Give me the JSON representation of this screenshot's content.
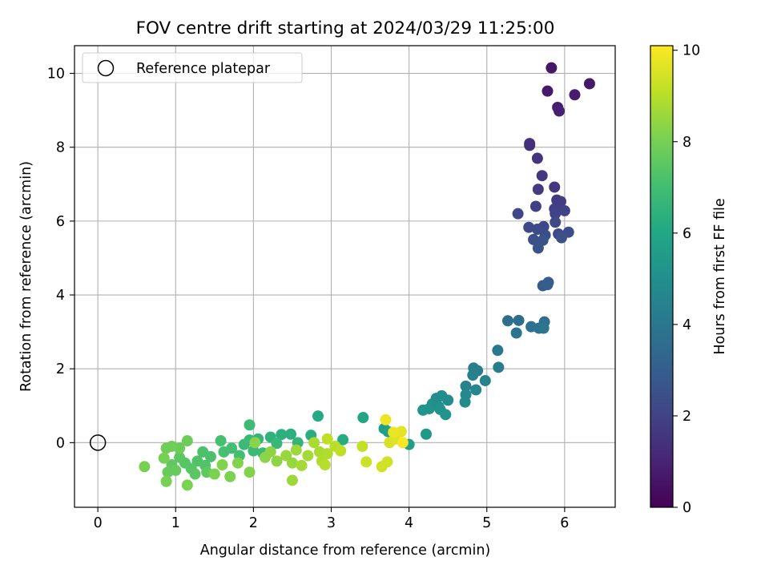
{
  "chart_data": {
    "type": "scatter",
    "title": "FOV centre drift starting at 2024/03/29 11:25:00",
    "xlabel": "Angular distance from reference (arcmin)",
    "ylabel": "Rotation from reference (arcmin)",
    "xlim": [
      -0.3,
      6.65
    ],
    "ylim": [
      -1.75,
      10.75
    ],
    "xticks": [
      0,
      1,
      2,
      3,
      4,
      5,
      6
    ],
    "yticks": [
      0,
      2,
      4,
      6,
      8,
      10
    ],
    "grid": true,
    "legend": {
      "placement": "top-left",
      "entries": [
        "Reference platepar"
      ]
    },
    "reference_point": {
      "x": 0,
      "y": 0
    },
    "colorbar": {
      "label": "Hours from first FF file",
      "min": 0,
      "max": 10.1,
      "ticks": [
        0,
        2,
        4,
        6,
        8,
        10
      ],
      "colormap": "viridis"
    },
    "points": [
      {
        "x": 5.83,
        "y": 10.15,
        "h": 0.6
      },
      {
        "x": 6.32,
        "y": 9.72,
        "h": 0.7
      },
      {
        "x": 5.78,
        "y": 9.52,
        "h": 0.7
      },
      {
        "x": 6.13,
        "y": 9.42,
        "h": 0.8
      },
      {
        "x": 5.91,
        "y": 9.08,
        "h": 0.8
      },
      {
        "x": 5.93,
        "y": 8.98,
        "h": 0.9
      },
      {
        "x": 5.55,
        "y": 8.1,
        "h": 1.4
      },
      {
        "x": 5.55,
        "y": 8.05,
        "h": 1.4
      },
      {
        "x": 5.65,
        "y": 7.7,
        "h": 1.5
      },
      {
        "x": 5.71,
        "y": 7.23,
        "h": 1.6
      },
      {
        "x": 5.87,
        "y": 6.92,
        "h": 1.6
      },
      {
        "x": 5.66,
        "y": 6.86,
        "h": 1.7
      },
      {
        "x": 5.9,
        "y": 6.57,
        "h": 1.7
      },
      {
        "x": 5.92,
        "y": 6.5,
        "h": 1.8
      },
      {
        "x": 5.95,
        "y": 6.53,
        "h": 1.8
      },
      {
        "x": 5.87,
        "y": 6.33,
        "h": 1.9
      },
      {
        "x": 5.63,
        "y": 6.4,
        "h": 1.9
      },
      {
        "x": 5.88,
        "y": 6.2,
        "h": 2.0
      },
      {
        "x": 6.0,
        "y": 6.28,
        "h": 2.0
      },
      {
        "x": 5.4,
        "y": 6.2,
        "h": 2.1
      },
      {
        "x": 5.73,
        "y": 5.85,
        "h": 2.1
      },
      {
        "x": 5.54,
        "y": 5.83,
        "h": 2.2
      },
      {
        "x": 5.88,
        "y": 5.97,
        "h": 2.2
      },
      {
        "x": 5.65,
        "y": 5.78,
        "h": 2.3
      },
      {
        "x": 5.92,
        "y": 5.65,
        "h": 2.3
      },
      {
        "x": 6.05,
        "y": 5.7,
        "h": 2.4
      },
      {
        "x": 5.75,
        "y": 5.62,
        "h": 2.4
      },
      {
        "x": 5.96,
        "y": 5.55,
        "h": 2.5
      },
      {
        "x": 5.6,
        "y": 5.5,
        "h": 2.5
      },
      {
        "x": 5.72,
        "y": 5.48,
        "h": 2.6
      },
      {
        "x": 5.66,
        "y": 5.27,
        "h": 2.6
      },
      {
        "x": 5.79,
        "y": 4.34,
        "h": 2.9
      },
      {
        "x": 5.72,
        "y": 4.25,
        "h": 2.9
      },
      {
        "x": 5.78,
        "y": 4.28,
        "h": 3.0
      },
      {
        "x": 5.27,
        "y": 3.3,
        "h": 3.6
      },
      {
        "x": 5.41,
        "y": 3.31,
        "h": 3.6
      },
      {
        "x": 5.74,
        "y": 3.27,
        "h": 3.7
      },
      {
        "x": 5.57,
        "y": 3.14,
        "h": 3.7
      },
      {
        "x": 5.67,
        "y": 3.1,
        "h": 3.8
      },
      {
        "x": 5.38,
        "y": 2.97,
        "h": 3.8
      },
      {
        "x": 5.73,
        "y": 3.1,
        "h": 3.9
      },
      {
        "x": 5.14,
        "y": 2.5,
        "h": 4.1
      },
      {
        "x": 5.15,
        "y": 2.04,
        "h": 4.2
      },
      {
        "x": 4.83,
        "y": 2.02,
        "h": 4.3
      },
      {
        "x": 4.88,
        "y": 1.95,
        "h": 4.3
      },
      {
        "x": 4.82,
        "y": 1.83,
        "h": 4.4
      },
      {
        "x": 4.98,
        "y": 1.68,
        "h": 4.5
      },
      {
        "x": 4.73,
        "y": 1.53,
        "h": 4.5
      },
      {
        "x": 4.86,
        "y": 1.43,
        "h": 4.6
      },
      {
        "x": 4.73,
        "y": 1.3,
        "h": 4.7
      },
      {
        "x": 4.5,
        "y": 1.15,
        "h": 4.8
      },
      {
        "x": 4.72,
        "y": 1.1,
        "h": 4.8
      },
      {
        "x": 4.35,
        "y": 1.2,
        "h": 4.9
      },
      {
        "x": 4.42,
        "y": 1.27,
        "h": 4.9
      },
      {
        "x": 4.3,
        "y": 1.05,
        "h": 5.0
      },
      {
        "x": 4.38,
        "y": 0.98,
        "h": 5.0
      },
      {
        "x": 4.26,
        "y": 0.92,
        "h": 5.1
      },
      {
        "x": 4.4,
        "y": 0.9,
        "h": 5.1
      },
      {
        "x": 4.18,
        "y": 0.88,
        "h": 5.2
      },
      {
        "x": 4.47,
        "y": 0.76,
        "h": 5.2
      },
      {
        "x": 4.22,
        "y": 0.23,
        "h": 5.4
      },
      {
        "x": 4.0,
        "y": -0.05,
        "h": 5.6
      },
      {
        "x": 3.68,
        "y": 0.38,
        "h": 5.6
      },
      {
        "x": 3.73,
        "y": 0.3,
        "h": 5.7
      },
      {
        "x": 3.41,
        "y": 0.68,
        "h": 5.9
      },
      {
        "x": 2.83,
        "y": 0.72,
        "h": 6.1
      },
      {
        "x": 3.15,
        "y": 0.08,
        "h": 6.2
      },
      {
        "x": 2.74,
        "y": 0.2,
        "h": 6.3
      },
      {
        "x": 2.48,
        "y": 0.23,
        "h": 6.4
      },
      {
        "x": 2.36,
        "y": 0.22,
        "h": 6.4
      },
      {
        "x": 2.22,
        "y": 0.15,
        "h": 6.5
      },
      {
        "x": 2.06,
        "y": 0.1,
        "h": 6.6
      },
      {
        "x": 2.57,
        "y": 0.0,
        "h": 6.6
      },
      {
        "x": 2.3,
        "y": -0.02,
        "h": 6.7
      },
      {
        "x": 1.95,
        "y": 0.07,
        "h": 6.7
      },
      {
        "x": 1.88,
        "y": -0.05,
        "h": 6.8
      },
      {
        "x": 2.0,
        "y": -0.22,
        "h": 6.8
      },
      {
        "x": 2.12,
        "y": -0.28,
        "h": 6.9
      },
      {
        "x": 1.95,
        "y": 0.48,
        "h": 6.9
      },
      {
        "x": 1.72,
        "y": -0.15,
        "h": 7.0
      },
      {
        "x": 1.82,
        "y": -0.35,
        "h": 7.0
      },
      {
        "x": 1.62,
        "y": -0.25,
        "h": 7.1
      },
      {
        "x": 1.58,
        "y": 0.05,
        "h": 7.1
      },
      {
        "x": 1.45,
        "y": -0.38,
        "h": 7.2
      },
      {
        "x": 1.35,
        "y": -0.25,
        "h": 7.2
      },
      {
        "x": 1.28,
        "y": -0.5,
        "h": 7.3
      },
      {
        "x": 1.38,
        "y": -0.62,
        "h": 7.3
      },
      {
        "x": 1.2,
        "y": -0.7,
        "h": 7.4
      },
      {
        "x": 1.12,
        "y": -0.55,
        "h": 7.4
      },
      {
        "x": 1.05,
        "y": -0.4,
        "h": 7.5
      },
      {
        "x": 1.25,
        "y": -0.85,
        "h": 7.5
      },
      {
        "x": 1.4,
        "y": -0.8,
        "h": 7.6
      },
      {
        "x": 0.95,
        "y": -0.6,
        "h": 7.6
      },
      {
        "x": 1.0,
        "y": -0.75,
        "h": 7.7
      },
      {
        "x": 0.9,
        "y": -0.8,
        "h": 7.7
      },
      {
        "x": 1.15,
        "y": 0.05,
        "h": 7.8
      },
      {
        "x": 1.05,
        "y": -0.15,
        "h": 7.8
      },
      {
        "x": 0.88,
        "y": -0.15,
        "h": 7.9
      },
      {
        "x": 0.95,
        "y": -0.1,
        "h": 7.9
      },
      {
        "x": 0.85,
        "y": -0.42,
        "h": 8.0
      },
      {
        "x": 0.6,
        "y": -0.65,
        "h": 8.0
      },
      {
        "x": 0.88,
        "y": -1.05,
        "h": 8.0
      },
      {
        "x": 1.15,
        "y": -1.15,
        "h": 8.1
      },
      {
        "x": 1.5,
        "y": -0.85,
        "h": 8.1
      },
      {
        "x": 1.7,
        "y": -0.92,
        "h": 8.1
      },
      {
        "x": 1.8,
        "y": -0.55,
        "h": 8.2
      },
      {
        "x": 1.6,
        "y": -0.6,
        "h": 8.2
      },
      {
        "x": 1.95,
        "y": -0.8,
        "h": 8.2
      },
      {
        "x": 2.02,
        "y": 0.0,
        "h": 8.3
      },
      {
        "x": 2.15,
        "y": -0.4,
        "h": 8.3
      },
      {
        "x": 2.22,
        "y": -0.25,
        "h": 8.4
      },
      {
        "x": 2.3,
        "y": -0.5,
        "h": 8.4
      },
      {
        "x": 2.42,
        "y": -0.35,
        "h": 8.5
      },
      {
        "x": 2.5,
        "y": -0.55,
        "h": 8.5
      },
      {
        "x": 2.55,
        "y": -0.2,
        "h": 8.6
      },
      {
        "x": 2.5,
        "y": -1.02,
        "h": 8.6
      },
      {
        "x": 2.62,
        "y": -0.62,
        "h": 8.7
      },
      {
        "x": 2.7,
        "y": -0.35,
        "h": 8.7
      },
      {
        "x": 2.78,
        "y": 0.0,
        "h": 8.8
      },
      {
        "x": 2.85,
        "y": -0.25,
        "h": 8.8
      },
      {
        "x": 2.88,
        "y": -0.5,
        "h": 8.9
      },
      {
        "x": 2.95,
        "y": -0.3,
        "h": 8.9
      },
      {
        "x": 2.92,
        "y": -0.6,
        "h": 9.0
      },
      {
        "x": 3.05,
        "y": -0.1,
        "h": 9.0
      },
      {
        "x": 3.12,
        "y": -0.22,
        "h": 9.1
      },
      {
        "x": 2.95,
        "y": 0.1,
        "h": 9.1
      },
      {
        "x": 3.4,
        "y": -0.1,
        "h": 9.2
      },
      {
        "x": 3.45,
        "y": -0.52,
        "h": 9.3
      },
      {
        "x": 3.65,
        "y": -0.65,
        "h": 9.4
      },
      {
        "x": 3.72,
        "y": -0.52,
        "h": 9.4
      },
      {
        "x": 3.75,
        "y": 0.0,
        "h": 9.5
      },
      {
        "x": 3.82,
        "y": 0.1,
        "h": 9.6
      },
      {
        "x": 3.9,
        "y": 0.3,
        "h": 9.7
      },
      {
        "x": 3.8,
        "y": 0.28,
        "h": 9.8
      },
      {
        "x": 3.7,
        "y": 0.62,
        "h": 9.9
      },
      {
        "x": 3.92,
        "y": 0.0,
        "h": 10.0
      }
    ]
  }
}
